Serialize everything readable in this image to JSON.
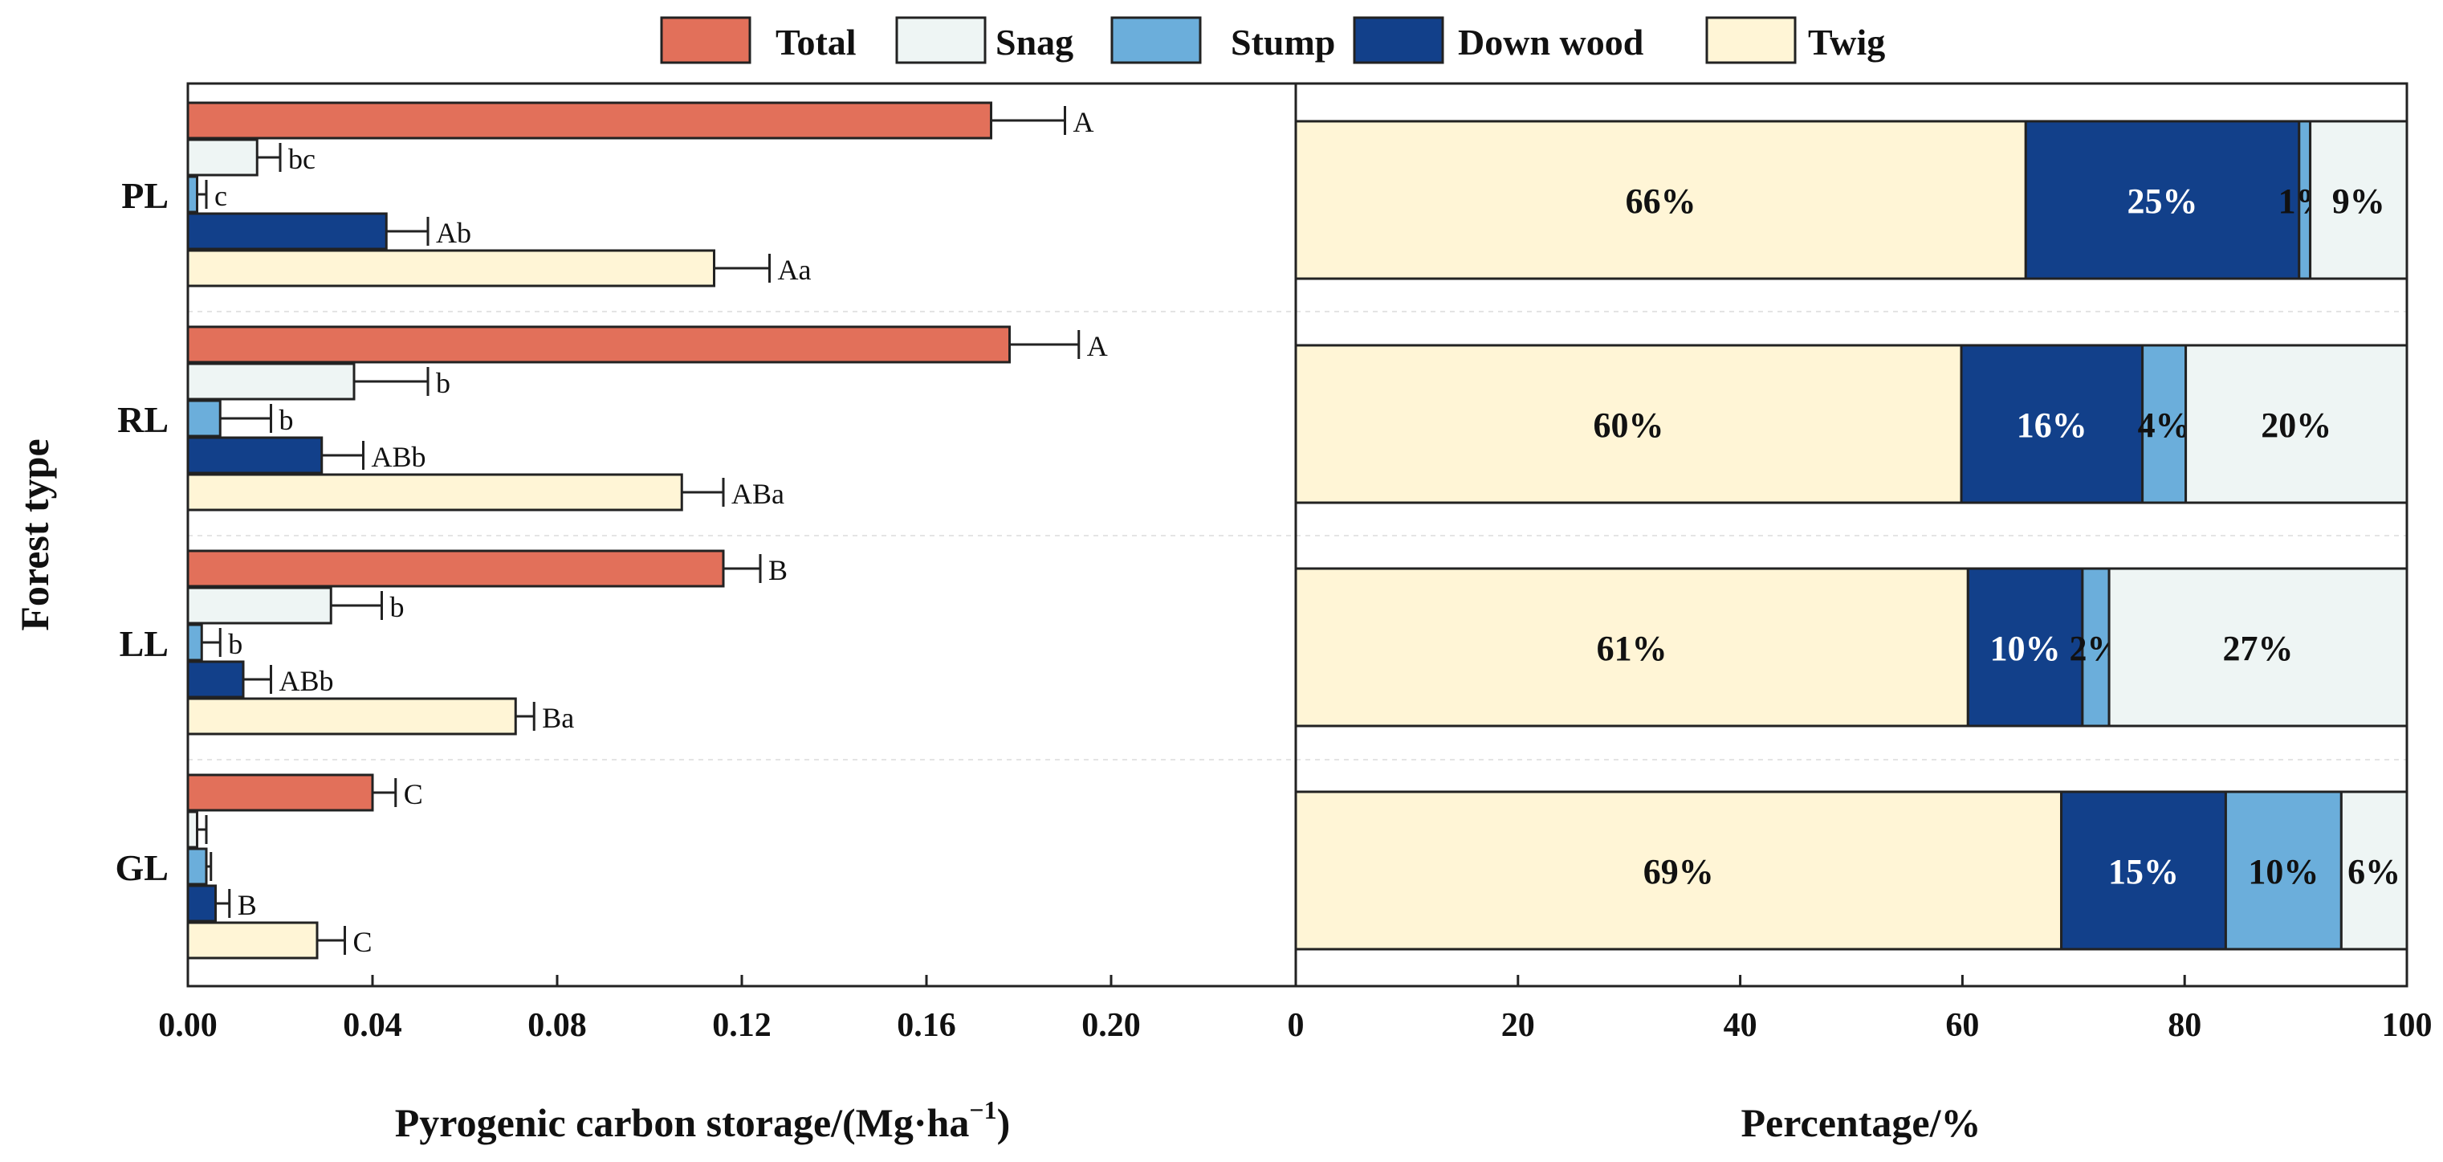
{
  "legend": [
    {
      "name": "Total",
      "color": "#E2705A"
    },
    {
      "name": "Snag",
      "color": "#EEF5F4"
    },
    {
      "name": "Stump",
      "color": "#6BAEDB"
    },
    {
      "name": "Down wood",
      "color": "#12408A"
    },
    {
      "name": "Twig",
      "color": "#FFF5D6"
    }
  ],
  "chart_data": [
    {
      "type": "bar",
      "orientation": "horizontal",
      "ylabel": "Forest  type",
      "xlabel": "Pyrogenic carbon storage/(Mg·ha",
      "xlabel_sup": "−1",
      "xlabel_close": ")",
      "categories": [
        "PL",
        "RL",
        "LL",
        "GL"
      ],
      "xlim": [
        0,
        0.24
      ],
      "xticks": [
        "0.00",
        "0.04",
        "0.08",
        "0.12",
        "0.16",
        "0.20"
      ],
      "xtick_values": [
        0,
        0.04,
        0.08,
        0.12,
        0.16,
        0.2
      ],
      "series": [
        {
          "name": "Total",
          "color": "#E2705A",
          "values": [
            0.174,
            0.178,
            0.116,
            0.04
          ],
          "errors": [
            0.016,
            0.015,
            0.008,
            0.005
          ],
          "labels": [
            "A",
            "A",
            "B",
            "C"
          ]
        },
        {
          "name": "Snag",
          "color": "#EEF5F4",
          "values": [
            0.015,
            0.036,
            0.031,
            0.002
          ],
          "errors": [
            0.005,
            0.016,
            0.011,
            0.002
          ],
          "labels": [
            "bc",
            "b",
            "b",
            ""
          ]
        },
        {
          "name": "Stump",
          "color": "#6BAEDB",
          "values": [
            0.002,
            0.007,
            0.003,
            0.004
          ],
          "errors": [
            0.002,
            0.011,
            0.004,
            0.001
          ],
          "labels": [
            "c",
            "b",
            "b",
            ""
          ]
        },
        {
          "name": "Down wood",
          "color": "#12408A",
          "values": [
            0.043,
            0.029,
            0.012,
            0.006
          ],
          "errors": [
            0.009,
            0.009,
            0.006,
            0.003
          ],
          "labels": [
            "Ab",
            "ABb",
            "ABb",
            "B"
          ]
        },
        {
          "name": "Twig",
          "color": "#FFF5D6",
          "values": [
            0.114,
            0.107,
            0.071,
            0.028
          ],
          "errors": [
            0.012,
            0.009,
            0.004,
            0.006
          ],
          "labels": [
            "Aa",
            "ABa",
            "Ba",
            "C"
          ]
        }
      ]
    },
    {
      "type": "bar",
      "orientation": "horizontal",
      "stacked": true,
      "xlabel": "Percentage/%",
      "categories": [
        "PL",
        "RL",
        "LL",
        "GL"
      ],
      "xlim": [
        0,
        100
      ],
      "xticks": [
        "0",
        "20",
        "40",
        "60",
        "80",
        "100"
      ],
      "xtick_values": [
        0,
        20,
        40,
        60,
        80,
        100
      ],
      "series": [
        {
          "name": "Twig",
          "color": "#FFF5D6",
          "values": [
            65.7,
            59.9,
            60.5,
            68.9
          ],
          "labels": [
            "66%",
            "60%",
            "61%",
            "69%"
          ]
        },
        {
          "name": "Down wood",
          "color": "#12408A",
          "values": [
            24.6,
            16.3,
            10.3,
            14.8
          ],
          "labels": [
            "25%",
            "16%",
            "10%",
            "15%"
          ]
        },
        {
          "name": "Stump",
          "color": "#6BAEDB",
          "values": [
            1.0,
            3.9,
            2.4,
            10.4
          ],
          "labels": [
            "1%",
            "4%",
            "2%",
            "10%"
          ]
        },
        {
          "name": "Snag",
          "color": "#EEF5F4",
          "values": [
            8.7,
            19.9,
            26.8,
            5.9
          ],
          "labels": [
            "9%",
            "20%",
            "27%",
            "6%"
          ]
        }
      ]
    }
  ]
}
